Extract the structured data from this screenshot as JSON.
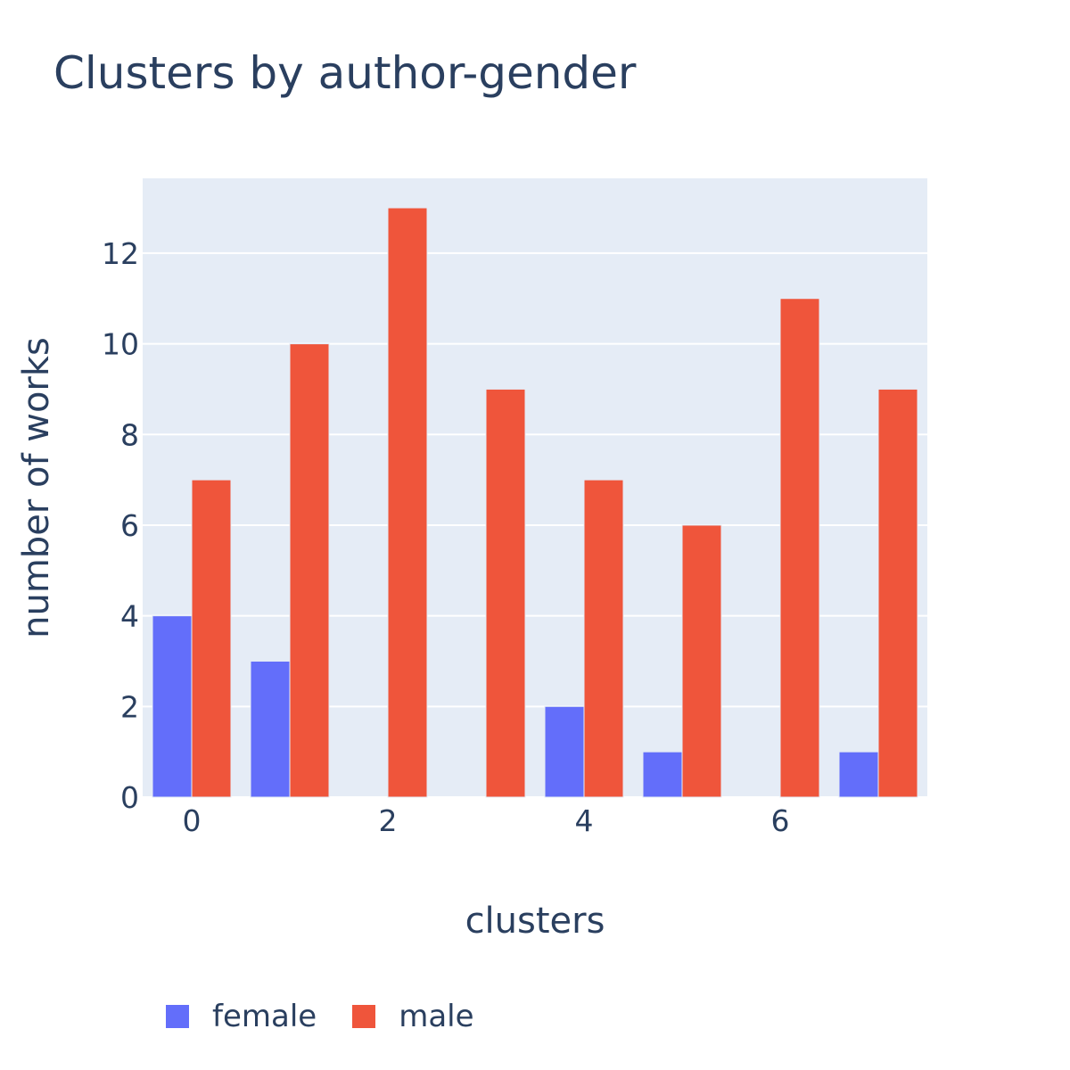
{
  "chart_data": {
    "type": "bar",
    "title": "Clusters by author-gender",
    "xlabel": "clusters",
    "ylabel": "number of works",
    "categories": [
      0,
      1,
      2,
      3,
      4,
      5,
      6,
      7
    ],
    "x_ticks": [
      "0",
      "2",
      "4",
      "6"
    ],
    "y_ticks": [
      "0",
      "2",
      "4",
      "6",
      "8",
      "10",
      "12"
    ],
    "xlim": [
      -0.5,
      7.5
    ],
    "ylim": [
      0,
      13.65
    ],
    "grid": true,
    "legend_position": "bottom-left",
    "series": [
      {
        "name": "female",
        "color": "#636efa",
        "values": [
          4,
          3,
          0,
          0,
          2,
          1,
          0,
          1
        ]
      },
      {
        "name": "male",
        "color": "#ef553b",
        "values": [
          7,
          10,
          13,
          9,
          7,
          6,
          11,
          9
        ]
      }
    ]
  }
}
